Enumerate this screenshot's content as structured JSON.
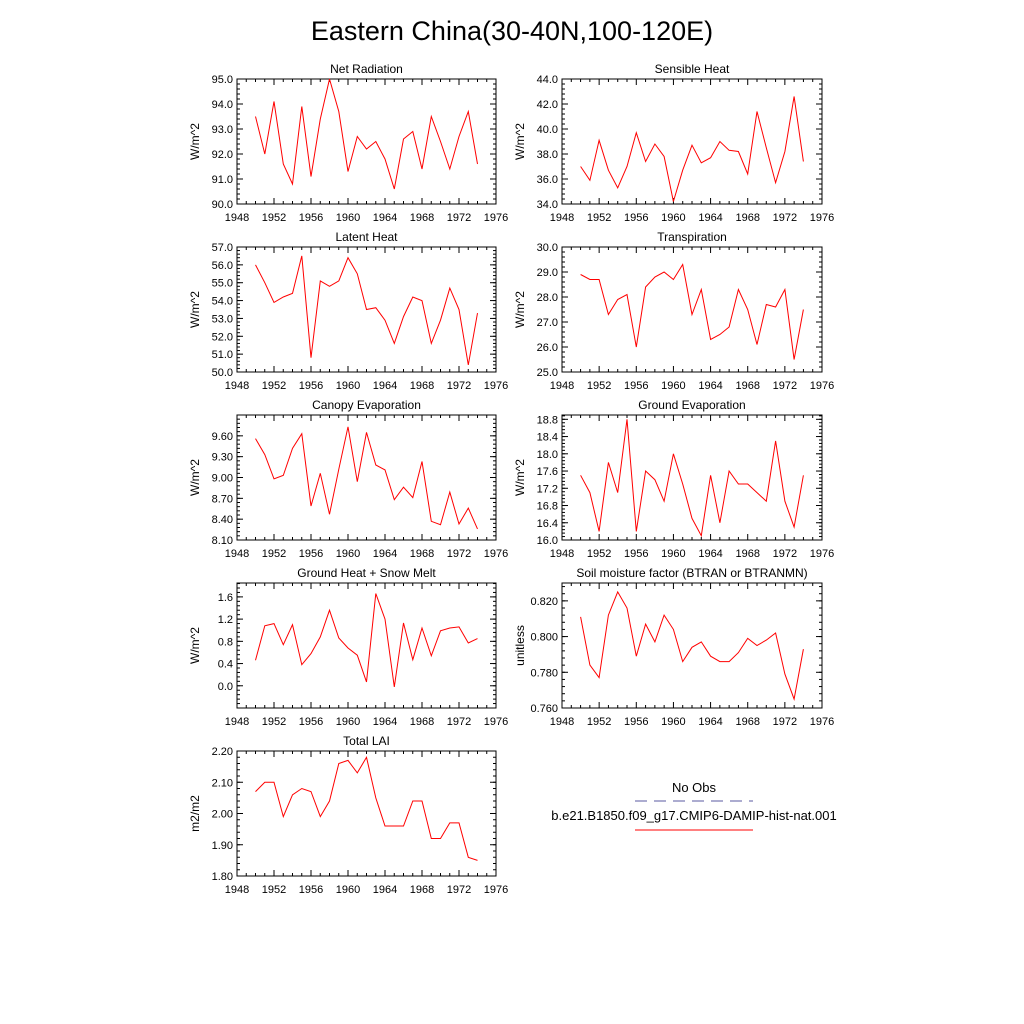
{
  "figure": {
    "title": "Eastern China(30-40N,100-120E)"
  },
  "legend": {
    "items": [
      {
        "label": "No Obs",
        "color": "#5a5aa0",
        "dash": "dashed"
      },
      {
        "label": "b.e21.B1850.f09_g17.CMIP6-DAMIP-hist-nat.001",
        "color": "#ff0000",
        "dash": "solid"
      }
    ]
  },
  "colors": {
    "series": "#ff0000",
    "axis": "#000000"
  },
  "chart_data": [
    {
      "type": "line",
      "title": "Net Radiation",
      "ylabel": "W/m^2",
      "xlim": [
        1948,
        1976
      ],
      "ylim": [
        90,
        95
      ],
      "xticks": [
        "1948",
        "1952",
        "1956",
        "1960",
        "1964",
        "1968",
        "1972",
        "1976"
      ],
      "yticks": [
        "90.0",
        "91.0",
        "92.0",
        "93.0",
        "94.0",
        "95.0"
      ],
      "series": [
        {
          "x": [
            1950,
            1951,
            1952,
            1953,
            1954,
            1955,
            1956,
            1957,
            1958,
            1959,
            1960,
            1961,
            1962,
            1963,
            1964,
            1965,
            1966,
            1967,
            1968,
            1969,
            1970,
            1971,
            1972,
            1973,
            1974
          ],
          "values": [
            93.5,
            92.0,
            94.1,
            91.6,
            90.8,
            93.9,
            91.1,
            93.4,
            95.0,
            93.7,
            91.3,
            92.7,
            92.2,
            92.5,
            91.8,
            90.6,
            92.6,
            92.9,
            91.4,
            93.5,
            92.5,
            91.4,
            92.7,
            93.7,
            91.6
          ]
        }
      ]
    },
    {
      "type": "line",
      "title": "Sensible Heat",
      "ylabel": "W/m^2",
      "xlim": [
        1948,
        1976
      ],
      "ylim": [
        34,
        44
      ],
      "xticks": [
        "1948",
        "1952",
        "1956",
        "1960",
        "1964",
        "1968",
        "1972",
        "1976"
      ],
      "yticks": [
        "34.0",
        "36.0",
        "38.0",
        "40.0",
        "42.0",
        "44.0"
      ],
      "series": [
        {
          "x": [
            1950,
            1951,
            1952,
            1953,
            1954,
            1955,
            1956,
            1957,
            1958,
            1959,
            1960,
            1961,
            1962,
            1963,
            1964,
            1965,
            1966,
            1967,
            1968,
            1969,
            1970,
            1971,
            1972,
            1973,
            1974
          ],
          "values": [
            37.0,
            35.9,
            39.1,
            36.7,
            35.3,
            37.0,
            39.7,
            37.4,
            38.8,
            37.8,
            34.2,
            36.7,
            38.7,
            37.3,
            37.7,
            39.0,
            38.3,
            38.2,
            36.4,
            41.4,
            38.5,
            35.7,
            38.2,
            42.6,
            37.4
          ]
        }
      ]
    },
    {
      "type": "line",
      "title": "Latent Heat",
      "ylabel": "W/m^2",
      "xlim": [
        1948,
        1976
      ],
      "ylim": [
        50,
        57
      ],
      "xticks": [
        "1948",
        "1952",
        "1956",
        "1960",
        "1964",
        "1968",
        "1972",
        "1976"
      ],
      "yticks": [
        "50.0",
        "51.0",
        "52.0",
        "53.0",
        "54.0",
        "55.0",
        "56.0",
        "57.0"
      ],
      "series": [
        {
          "x": [
            1950,
            1951,
            1952,
            1953,
            1954,
            1955,
            1956,
            1957,
            1958,
            1959,
            1960,
            1961,
            1962,
            1963,
            1964,
            1965,
            1966,
            1967,
            1968,
            1969,
            1970,
            1971,
            1972,
            1973,
            1974
          ],
          "values": [
            56.0,
            55.0,
            53.9,
            54.2,
            54.4,
            56.5,
            50.8,
            55.1,
            54.8,
            55.1,
            56.4,
            55.5,
            53.5,
            53.6,
            52.9,
            51.6,
            53.1,
            54.2,
            54.0,
            51.6,
            52.9,
            54.7,
            53.5,
            50.4,
            53.3
          ]
        }
      ]
    },
    {
      "type": "line",
      "title": "Transpiration",
      "ylabel": "W/m^2",
      "xlim": [
        1948,
        1976
      ],
      "ylim": [
        25,
        30
      ],
      "xticks": [
        "1948",
        "1952",
        "1956",
        "1960",
        "1964",
        "1968",
        "1972",
        "1976"
      ],
      "yticks": [
        "25.0",
        "26.0",
        "27.0",
        "28.0",
        "29.0",
        "30.0"
      ],
      "series": [
        {
          "x": [
            1950,
            1951,
            1952,
            1953,
            1954,
            1955,
            1956,
            1957,
            1958,
            1959,
            1960,
            1961,
            1962,
            1963,
            1964,
            1965,
            1966,
            1967,
            1968,
            1969,
            1970,
            1971,
            1972,
            1973,
            1974
          ],
          "values": [
            28.9,
            28.7,
            28.7,
            27.3,
            27.9,
            28.1,
            26.0,
            28.4,
            28.8,
            29.0,
            28.7,
            29.3,
            27.3,
            28.3,
            26.3,
            26.5,
            26.8,
            28.3,
            27.5,
            26.1,
            27.7,
            27.6,
            28.3,
            25.5,
            27.5
          ]
        }
      ]
    },
    {
      "type": "line",
      "title": "Canopy Evaporation",
      "ylabel": "W/m^2",
      "xlim": [
        1948,
        1976
      ],
      "ylim": [
        8.1,
        9.9
      ],
      "xticks": [
        "1948",
        "1952",
        "1956",
        "1960",
        "1964",
        "1968",
        "1972",
        "1976"
      ],
      "yticks": [
        "8.10",
        "8.40",
        "8.70",
        "9.00",
        "9.30",
        "9.60"
      ],
      "series": [
        {
          "x": [
            1950,
            1951,
            1952,
            1953,
            1954,
            1955,
            1956,
            1957,
            1958,
            1959,
            1960,
            1961,
            1962,
            1963,
            1964,
            1965,
            1966,
            1967,
            1968,
            1969,
            1970,
            1971,
            1972,
            1973,
            1974
          ],
          "values": [
            9.56,
            9.33,
            8.98,
            9.03,
            9.42,
            9.63,
            8.59,
            9.06,
            8.47,
            9.12,
            9.73,
            8.94,
            9.65,
            9.18,
            9.11,
            8.68,
            8.86,
            8.71,
            9.23,
            8.37,
            8.32,
            8.79,
            8.33,
            8.56,
            8.26
          ]
        }
      ]
    },
    {
      "type": "line",
      "title": "Ground Evaporation",
      "ylabel": "W/m^2",
      "xlim": [
        1948,
        1976
      ],
      "ylim": [
        16.0,
        18.9
      ],
      "xticks": [
        "1948",
        "1952",
        "1956",
        "1960",
        "1964",
        "1968",
        "1972",
        "1976"
      ],
      "yticks": [
        "16.0",
        "16.4",
        "16.8",
        "17.2",
        "17.6",
        "18.0",
        "18.4",
        "18.8"
      ],
      "series": [
        {
          "x": [
            1950,
            1951,
            1952,
            1953,
            1954,
            1955,
            1956,
            1957,
            1958,
            1959,
            1960,
            1961,
            1962,
            1963,
            1964,
            1965,
            1966,
            1967,
            1968,
            1969,
            1970,
            1971,
            1972,
            1973,
            1974
          ],
          "values": [
            17.5,
            17.1,
            16.2,
            17.8,
            17.1,
            18.8,
            16.2,
            17.6,
            17.4,
            16.9,
            18.0,
            17.3,
            16.5,
            16.1,
            17.5,
            16.4,
            17.6,
            17.3,
            17.3,
            17.1,
            16.9,
            18.3,
            16.9,
            16.3,
            17.5
          ]
        }
      ]
    },
    {
      "type": "line",
      "title": "Ground Heat + Snow Melt",
      "ylabel": "W/m^2",
      "xlim": [
        1948,
        1976
      ],
      "ylim": [
        -0.4,
        1.85
      ],
      "xticks": [
        "1948",
        "1952",
        "1956",
        "1960",
        "1964",
        "1968",
        "1972",
        "1976"
      ],
      "yticks": [
        "0.0",
        "0.4",
        "0.8",
        "1.2",
        "1.6"
      ],
      "series": [
        {
          "x": [
            1950,
            1951,
            1952,
            1953,
            1954,
            1955,
            1956,
            1957,
            1958,
            1959,
            1960,
            1961,
            1962,
            1963,
            1964,
            1965,
            1966,
            1967,
            1968,
            1969,
            1970,
            1971,
            1972,
            1973,
            1974
          ],
          "values": [
            0.46,
            1.08,
            1.12,
            0.74,
            1.1,
            0.38,
            0.58,
            0.88,
            1.36,
            0.86,
            0.68,
            0.55,
            0.07,
            1.66,
            1.2,
            -0.02,
            1.13,
            0.47,
            1.04,
            0.54,
            0.99,
            1.04,
            1.06,
            0.77,
            0.85
          ]
        }
      ]
    },
    {
      "type": "line",
      "title": "Soil moisture factor (BTRAN or BTRANMN)",
      "ylabel": "unitless",
      "xlim": [
        1948,
        1976
      ],
      "ylim": [
        0.76,
        0.83
      ],
      "xticks": [
        "1948",
        "1952",
        "1956",
        "1960",
        "1964",
        "1968",
        "1972",
        "1976"
      ],
      "yticks": [
        "0.760",
        "0.780",
        "0.800",
        "0.820"
      ],
      "series": [
        {
          "x": [
            1950,
            1951,
            1952,
            1953,
            1954,
            1955,
            1956,
            1957,
            1958,
            1959,
            1960,
            1961,
            1962,
            1963,
            1964,
            1965,
            1966,
            1967,
            1968,
            1969,
            1970,
            1971,
            1972,
            1973,
            1974
          ],
          "values": [
            0.811,
            0.784,
            0.777,
            0.812,
            0.825,
            0.816,
            0.789,
            0.807,
            0.797,
            0.812,
            0.804,
            0.786,
            0.794,
            0.797,
            0.789,
            0.786,
            0.786,
            0.791,
            0.799,
            0.795,
            0.798,
            0.802,
            0.779,
            0.765,
            0.793
          ]
        }
      ]
    },
    {
      "type": "line",
      "title": "Total LAI",
      "ylabel": "m2/m2",
      "xlim": [
        1948,
        1976
      ],
      "ylim": [
        1.8,
        2.2
      ],
      "xticks": [
        "1948",
        "1952",
        "1956",
        "1960",
        "1964",
        "1968",
        "1972",
        "1976"
      ],
      "yticks": [
        "1.80",
        "1.90",
        "2.00",
        "2.10",
        "2.20"
      ],
      "series": [
        {
          "x": [
            1950,
            1951,
            1952,
            1953,
            1954,
            1955,
            1956,
            1957,
            1958,
            1959,
            1960,
            1961,
            1962,
            1963,
            1964,
            1965,
            1966,
            1967,
            1968,
            1969,
            1970,
            1971,
            1972,
            1973,
            1974
          ],
          "values": [
            2.07,
            2.1,
            2.1,
            1.99,
            2.06,
            2.08,
            2.07,
            1.99,
            2.04,
            2.16,
            2.17,
            2.13,
            2.18,
            2.05,
            1.96,
            1.96,
            1.96,
            2.04,
            2.04,
            1.92,
            1.92,
            1.97,
            1.97,
            1.86,
            1.85
          ]
        }
      ]
    }
  ]
}
